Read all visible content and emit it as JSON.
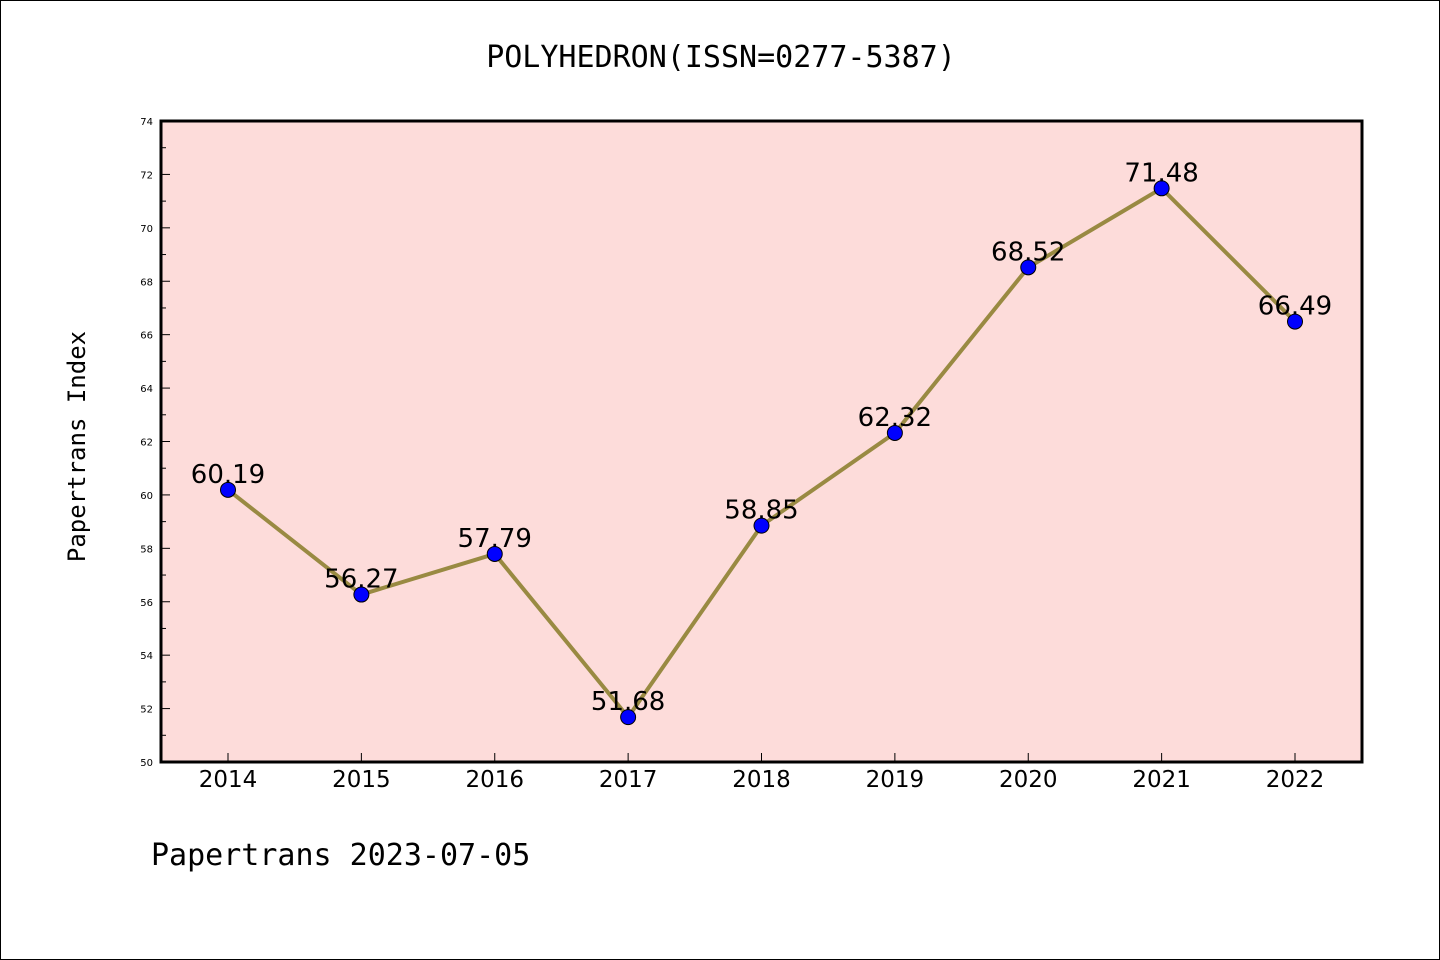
{
  "chart_data": {
    "type": "line",
    "title": "POLYHEDRON(ISSN=0277-5387)",
    "xlabel": "",
    "ylabel": "Papertrans Index",
    "categories": [
      "2014",
      "2015",
      "2016",
      "2017",
      "2018",
      "2019",
      "2020",
      "2021",
      "2022"
    ],
    "series": [
      {
        "values": [
          60.19,
          56.27,
          57.79,
          51.68,
          58.85,
          62.32,
          68.52,
          71.48,
          66.49
        ],
        "labels": [
          "60.19",
          "56.27",
          "57.79",
          "51.68",
          "58.85",
          "62.32",
          "68.52",
          "71.48",
          "66.49"
        ],
        "line_color": "#998a42",
        "marker_color": "#0000ff"
      }
    ],
    "ylim": [
      50,
      74
    ],
    "yticks": [
      "50",
      "52",
      "54",
      "56",
      "58",
      "60",
      "62",
      "64",
      "66",
      "68",
      "70",
      "72",
      "74"
    ],
    "grid": false,
    "plot_background": "#fddcda",
    "footer": "Papertrans 2023-07-05"
  }
}
